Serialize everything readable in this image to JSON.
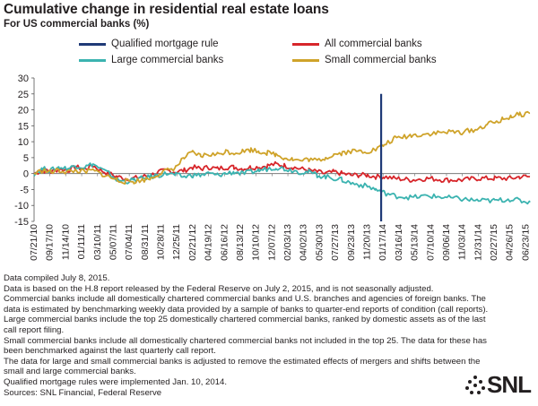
{
  "chart_data": {
    "type": "line",
    "title": "Cumulative change in residential real estate loans",
    "subtitle": "For US commercial banks (%)",
    "ylim": [
      -15,
      30
    ],
    "yticks": [
      -15,
      -10,
      -5,
      0,
      5,
      10,
      15,
      20,
      25,
      30
    ],
    "xtick_labels": [
      "07/21/10",
      "09/17/10",
      "11/14/10",
      "01/11/11",
      "03/10/11",
      "05/07/11",
      "07/04/11",
      "08/31/11",
      "10/28/11",
      "12/25/11",
      "02/21/12",
      "04/19/12",
      "06/16/12",
      "08/13/12",
      "10/10/12",
      "12/07/12",
      "02/03/13",
      "04/02/13",
      "05/30/13",
      "07/27/13",
      "09/23/13",
      "11/20/13",
      "01/17/14",
      "03/16/14",
      "05/13/14",
      "07/10/14",
      "09/06/14",
      "11/03/14",
      "12/31/14",
      "02/27/15",
      "04/26/15",
      "06/23/15"
    ],
    "x_start": "07/21/10",
    "x_end": "07/08/15",
    "event": {
      "name": "Qualified mortgage rule",
      "date": "01/10/14",
      "color": "#1f3a77"
    },
    "grid": false,
    "legend_placement": "top",
    "series": [
      {
        "name": "All commercial banks",
        "color": "#d7262b",
        "points": [
          [
            "07/21/10",
            0
          ],
          [
            "08/21/10",
            1
          ],
          [
            "09/21/10",
            0.5
          ],
          [
            "10/21/10",
            1.5
          ],
          [
            "11/21/10",
            1
          ],
          [
            "12/21/10",
            2
          ],
          [
            "01/21/11",
            1.5
          ],
          [
            "02/21/11",
            2.5
          ],
          [
            "03/21/11",
            1
          ],
          [
            "04/21/11",
            0
          ],
          [
            "05/21/11",
            -1
          ],
          [
            "06/21/11",
            -1.5
          ],
          [
            "07/21/11",
            -1.5
          ],
          [
            "08/21/11",
            -1
          ],
          [
            "09/21/11",
            -0.5
          ],
          [
            "10/21/11",
            0.5
          ],
          [
            "11/21/11",
            1
          ],
          [
            "12/21/11",
            0.5
          ],
          [
            "01/21/12",
            1
          ],
          [
            "02/21/12",
            2
          ],
          [
            "03/21/12",
            1.5
          ],
          [
            "04/21/12",
            2
          ],
          [
            "05/21/12",
            1.5
          ],
          [
            "06/21/12",
            2
          ],
          [
            "07/21/12",
            2
          ],
          [
            "08/21/12",
            1.5
          ],
          [
            "09/21/12",
            2
          ],
          [
            "10/21/12",
            2
          ],
          [
            "11/21/12",
            2.5
          ],
          [
            "12/21/12",
            3
          ],
          [
            "01/21/13",
            2.5
          ],
          [
            "02/21/13",
            2
          ],
          [
            "03/21/13",
            1.5
          ],
          [
            "04/21/13",
            1
          ],
          [
            "05/21/13",
            0.5
          ],
          [
            "06/21/13",
            0
          ],
          [
            "07/21/13",
            0.5
          ],
          [
            "08/21/13",
            0
          ],
          [
            "09/21/13",
            -0.5
          ],
          [
            "10/21/13",
            -0.5
          ],
          [
            "11/21/13",
            -0.5
          ],
          [
            "12/21/13",
            -1
          ],
          [
            "01/21/14",
            -1
          ],
          [
            "03/01/14",
            -1.5
          ],
          [
            "05/01/14",
            -2
          ],
          [
            "07/01/14",
            -1.5
          ],
          [
            "09/01/14",
            -2
          ],
          [
            "11/01/14",
            -2
          ],
          [
            "01/01/15",
            -1.5
          ],
          [
            "03/01/15",
            -1.5
          ],
          [
            "05/01/15",
            -1.5
          ],
          [
            "06/01/15",
            -1
          ],
          [
            "07/08/15",
            -1
          ]
        ]
      },
      {
        "name": "Large commercial banks",
        "color": "#3bb3b0",
        "points": [
          [
            "07/21/10",
            0
          ],
          [
            "08/21/10",
            1.5
          ],
          [
            "09/21/10",
            1
          ],
          [
            "10/21/10",
            2
          ],
          [
            "11/21/10",
            1.5
          ],
          [
            "12/21/10",
            2.5
          ],
          [
            "01/21/11",
            2
          ],
          [
            "02/21/11",
            3
          ],
          [
            "03/21/11",
            1.5
          ],
          [
            "04/21/11",
            0
          ],
          [
            "05/21/11",
            -2
          ],
          [
            "06/21/11",
            -2.5
          ],
          [
            "07/21/11",
            -2
          ],
          [
            "08/21/11",
            -1.5
          ],
          [
            "09/21/11",
            -1
          ],
          [
            "10/21/11",
            -0.5
          ],
          [
            "11/21/11",
            0
          ],
          [
            "12/21/11",
            -0.5
          ],
          [
            "01/21/12",
            -1
          ],
          [
            "02/21/12",
            -0.5
          ],
          [
            "03/21/12",
            -0.5
          ],
          [
            "04/21/12",
            0
          ],
          [
            "05/21/12",
            -0.5
          ],
          [
            "06/21/12",
            0
          ],
          [
            "07/21/12",
            0.5
          ],
          [
            "08/21/12",
            0
          ],
          [
            "09/21/12",
            0.5
          ],
          [
            "10/21/12",
            1
          ],
          [
            "11/21/12",
            1.5
          ],
          [
            "12/21/12",
            2
          ],
          [
            "01/21/13",
            1.5
          ],
          [
            "02/21/13",
            1
          ],
          [
            "03/21/13",
            0.5
          ],
          [
            "04/21/13",
            0.5
          ],
          [
            "05/21/13",
            -0.5
          ],
          [
            "06/21/13",
            -1
          ],
          [
            "07/21/13",
            -1.5
          ],
          [
            "08/21/13",
            -2
          ],
          [
            "09/21/13",
            -3
          ],
          [
            "10/21/13",
            -3.5
          ],
          [
            "11/21/13",
            -4
          ],
          [
            "12/21/13",
            -5
          ],
          [
            "01/21/14",
            -6
          ],
          [
            "03/01/14",
            -7
          ],
          [
            "05/01/14",
            -7.5
          ],
          [
            "07/01/14",
            -7
          ],
          [
            "09/01/14",
            -7.5
          ],
          [
            "11/01/14",
            -8
          ],
          [
            "01/01/15",
            -8.5
          ],
          [
            "03/01/15",
            -8.5
          ],
          [
            "05/01/15",
            -8
          ],
          [
            "06/01/15",
            -8.5
          ],
          [
            "07/08/15",
            -9
          ]
        ]
      },
      {
        "name": "Small commercial banks",
        "color": "#cfa32a",
        "points": [
          [
            "07/21/10",
            0
          ],
          [
            "08/21/10",
            1
          ],
          [
            "09/21/10",
            0.5
          ],
          [
            "10/21/10",
            1
          ],
          [
            "11/21/10",
            0.5
          ],
          [
            "12/21/10",
            1
          ],
          [
            "01/21/11",
            0.5
          ],
          [
            "02/21/11",
            1
          ],
          [
            "03/21/11",
            0
          ],
          [
            "04/21/11",
            -1
          ],
          [
            "05/21/11",
            -2
          ],
          [
            "06/21/11",
            -2.5
          ],
          [
            "07/21/11",
            -2.5
          ],
          [
            "08/21/11",
            -2
          ],
          [
            "09/21/11",
            -1.5
          ],
          [
            "10/21/11",
            0
          ],
          [
            "11/21/11",
            1
          ],
          [
            "12/21/11",
            2
          ],
          [
            "01/21/12",
            5
          ],
          [
            "02/21/12",
            6.5
          ],
          [
            "03/21/12",
            5.5
          ],
          [
            "04/21/12",
            6
          ],
          [
            "05/21/12",
            6
          ],
          [
            "06/21/12",
            7
          ],
          [
            "07/21/12",
            6.5
          ],
          [
            "08/21/12",
            7
          ],
          [
            "09/21/12",
            7.5
          ],
          [
            "10/21/12",
            7
          ],
          [
            "11/21/12",
            6.5
          ],
          [
            "12/21/12",
            6
          ],
          [
            "01/21/13",
            5
          ],
          [
            "02/21/13",
            4.5
          ],
          [
            "03/21/13",
            4
          ],
          [
            "04/21/13",
            4.5
          ],
          [
            "05/21/13",
            4
          ],
          [
            "06/21/13",
            5
          ],
          [
            "07/21/13",
            6
          ],
          [
            "08/21/13",
            6.5
          ],
          [
            "09/21/13",
            7
          ],
          [
            "10/21/13",
            7
          ],
          [
            "11/21/13",
            7
          ],
          [
            "12/21/13",
            7.5
          ],
          [
            "01/21/14",
            9
          ],
          [
            "03/01/14",
            11
          ],
          [
            "05/01/14",
            12
          ],
          [
            "07/01/14",
            12.5
          ],
          [
            "09/01/14",
            13
          ],
          [
            "11/01/14",
            13
          ],
          [
            "01/01/15",
            14
          ],
          [
            "02/01/15",
            15.5
          ],
          [
            "03/01/15",
            16
          ],
          [
            "04/01/15",
            17
          ],
          [
            "05/01/15",
            18
          ],
          [
            "06/01/15",
            18.5
          ],
          [
            "07/08/15",
            19
          ]
        ]
      }
    ]
  },
  "notes": [
    "Data compiled July 8, 2015.",
    "Data is based on the H.8 report released by the Federal Reserve on July 2, 2015, and is not seasonally adjusted.",
    "Commercial banks include all domestically chartered commercial banks and U.S. branches and agencies of foreign banks. The data is estimated by benchmarking weekly data provided by a sample of banks to quarter-end reports of condition (call reports).",
    "Large commercial banks include the top 25 domestically chartered commercial banks, ranked by domestic assets as of the last call report filing.",
    "Small commercial banks include all domestically chartered commercial banks not included in the top 25. The data for these has been benchmarked against the last quarterly call report.",
    "The data for large and small commercial banks is adjusted to remove the estimated effects of mergers and shifts between the small and large commercial banks.",
    "Qualified mortgage rules were implemented Jan. 10, 2014.",
    "Sources: SNL Financial, Federal Reserve"
  ],
  "logo_text": "SNL"
}
